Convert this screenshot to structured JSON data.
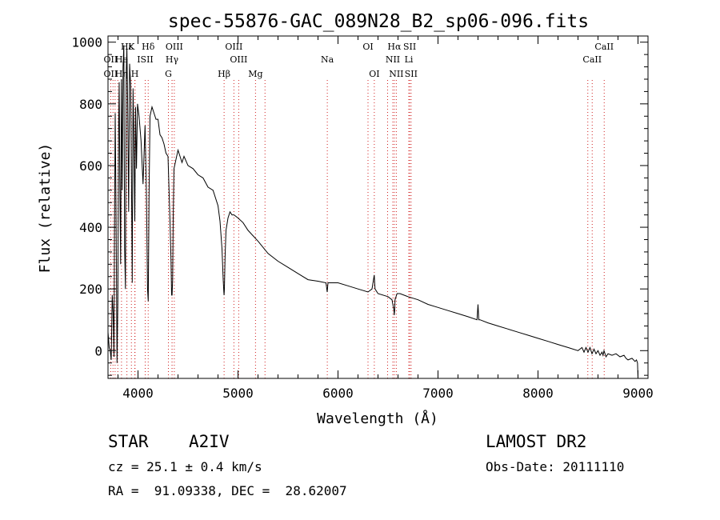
{
  "chart_data": {
    "type": "line",
    "title": "spec-55876-GAC_089N28_B2_sp06-096.fits",
    "xlabel": "Wavelength (Å)",
    "ylabel": "Flux (relative)",
    "xlim": [
      3700,
      9100
    ],
    "ylim": [
      -90,
      1020
    ],
    "xticks": [
      4000,
      5000,
      6000,
      7000,
      8000,
      9000
    ],
    "yticks": [
      0,
      200,
      400,
      600,
      800,
      1000
    ],
    "grid": false,
    "series": [
      {
        "color": "#000000",
        "x": [
          3700,
          3712,
          3722,
          3732,
          3742,
          3752,
          3760,
          3765,
          3772,
          3780,
          3790,
          3798,
          3806,
          3812,
          3818,
          3826,
          3834,
          3842,
          3850,
          3858,
          3866,
          3874,
          3882,
          3889,
          3896,
          3906,
          3916,
          3926,
          3934,
          3942,
          3950,
          3958,
          3963,
          3968,
          3975,
          3985,
          3995,
          4010,
          4030,
          4050,
          4070,
          4085,
          4095,
          4102,
          4110,
          4120,
          4140,
          4160,
          4180,
          4200,
          4220,
          4240,
          4260,
          4280,
          4300,
          4320,
          4330,
          4336,
          4341,
          4346,
          4352,
          4360,
          4380,
          4400,
          4420,
          4440,
          4460,
          4500,
          4550,
          4600,
          4650,
          4700,
          4750,
          4800,
          4820,
          4840,
          4852,
          4858,
          4861,
          4864,
          4870,
          4880,
          4900,
          4920,
          4940,
          4960,
          5000,
          5050,
          5100,
          5200,
          5300,
          5400,
          5500,
          5600,
          5700,
          5800,
          5880,
          5892,
          5900,
          6000,
          6100,
          6200,
          6300,
          6340,
          6362,
          6370,
          6400,
          6500,
          6540,
          6560,
          6562,
          6566,
          6570,
          6590,
          6620,
          6700,
          6800,
          6900,
          7000,
          7100,
          7200,
          7300,
          7390,
          7400,
          7408,
          7420,
          7500,
          7600,
          7700,
          7800,
          7900,
          8000,
          8100,
          8200,
          8300,
          8400,
          8440,
          8460,
          8480,
          8500,
          8520,
          8540,
          8560,
          8580,
          8600,
          8620,
          8640,
          8650,
          8660,
          8680,
          8700,
          8740,
          8780,
          8820,
          8860,
          8880,
          8900,
          8940,
          8970,
          8985,
          8995,
          9000
        ],
        "y": [
          60,
          10,
          0,
          -30,
          180,
          120,
          -20,
          380,
          770,
          470,
          -40,
          160,
          720,
          870,
          560,
          280,
          880,
          520,
          920,
          990,
          330,
          200,
          900,
          980,
          820,
          450,
          930,
          860,
          570,
          220,
          850,
          700,
          560,
          420,
          790,
          590,
          800,
          760,
          680,
          540,
          730,
          500,
          200,
          160,
          500,
          760,
          790,
          770,
          750,
          750,
          700,
          690,
          670,
          640,
          630,
          420,
          290,
          180,
          180,
          230,
          430,
          590,
          620,
          650,
          630,
          610,
          630,
          600,
          590,
          570,
          560,
          530,
          520,
          470,
          420,
          330,
          230,
          190,
          180,
          200,
          300,
          390,
          430,
          450,
          440,
          440,
          430,
          415,
          390,
          355,
          315,
          290,
          270,
          250,
          230,
          225,
          220,
          190,
          220,
          220,
          210,
          200,
          190,
          200,
          245,
          200,
          185,
          175,
          165,
          130,
          115,
          130,
          165,
          185,
          185,
          175,
          165,
          150,
          140,
          130,
          120,
          110,
          100,
          150,
          100,
          100,
          90,
          80,
          70,
          60,
          50,
          40,
          30,
          20,
          10,
          0,
          10,
          -5,
          10,
          -5,
          10,
          -10,
          5,
          -10,
          0,
          -15,
          -5,
          -15,
          0,
          -20,
          -10,
          -15,
          -10,
          -20,
          -15,
          -25,
          -30,
          -25,
          -35,
          -30,
          -40,
          -90
        ]
      }
    ],
    "lines": [
      {
        "label": "Hα",
        "row": 1,
        "x": 6563
      },
      {
        "label": "Hδ",
        "row": 1,
        "x": 4102
      },
      {
        "label": "K",
        "row": 1,
        "x": 3934
      },
      {
        "label": "Hε",
        "row": 1,
        "x": 3889
      },
      {
        "label": "OIII",
        "row": 1,
        "x": 4363
      },
      {
        "label": "OIII",
        "row": 1,
        "x": 4959
      },
      {
        "label": "OI",
        "row": 1,
        "x": 6300
      },
      {
        "label": "SII",
        "row": 1,
        "x": 6717
      },
      {
        "label": "CaII",
        "row": 1,
        "x": 8662
      },
      {
        "label": "OII",
        "row": 2,
        "x": 3727
      },
      {
        "label": "He",
        "row": 2,
        "x": 3835
      },
      {
        "label": "ISII",
        "row": 2,
        "x": 4072
      },
      {
        "label": "Hγ",
        "row": 2,
        "x": 4340
      },
      {
        "label": "OIII",
        "row": 2,
        "x": 5007
      },
      {
        "label": "Na",
        "row": 2,
        "x": 5893
      },
      {
        "label": "NII",
        "row": 2,
        "x": 6548
      },
      {
        "label": "Li",
        "row": 2,
        "x": 6708
      },
      {
        "label": "CaII",
        "row": 2,
        "x": 8542
      },
      {
        "label": "OII",
        "row": 3,
        "x": 3727
      },
      {
        "label": "Hη",
        "row": 3,
        "x": 3835
      },
      {
        "label": "H",
        "row": 3,
        "x": 3968
      },
      {
        "label": "G",
        "row": 3,
        "x": 4304
      },
      {
        "label": "Hβ",
        "row": 3,
        "x": 4861
      },
      {
        "label": "Mg",
        "row": 3,
        "x": 5175
      },
      {
        "label": "OI",
        "row": 3,
        "x": 6363
      },
      {
        "label": "NII",
        "row": 3,
        "x": 6583
      },
      {
        "label": "SII",
        "row": 3,
        "x": 6731
      }
    ],
    "extra_lines": [
      3750,
      3771,
      3798,
      3970,
      4341,
      4861,
      5270,
      6496,
      6583,
      8498
    ]
  },
  "info": {
    "object_type": "STAR",
    "subclass": "A2IV",
    "cz": "cz = 25.1 ± 0.4 km/s",
    "coords": "RA =  91.09338, DEC =  28.62007",
    "survey": "LAMOST DR2",
    "obs_date": "Obs-Date: 20111110"
  }
}
